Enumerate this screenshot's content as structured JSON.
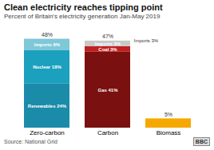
{
  "chart_data": {
    "type": "bar",
    "stacked": true,
    "title": "Clean electricity reaches tipping point",
    "subtitle": "Percent of Britain's electricity generation Jan-May 2019",
    "source": "Source: National Grid",
    "credit": "BBC",
    "categories": [
      "Zero-carbon",
      "Carbon",
      "Biomass"
    ],
    "series": [
      {
        "name": "Renewables 24%",
        "color": "#1a8caa",
        "values": [
          24,
          null,
          null
        ]
      },
      {
        "name": "Nuclear 18%",
        "color": "#1ba0be",
        "values": [
          18,
          null,
          null
        ]
      },
      {
        "name": "Imports 6%",
        "color": "#7ec8d8",
        "values": [
          6,
          null,
          null
        ]
      },
      {
        "name": "Gas 41%",
        "color": "#7a1010",
        "values": [
          null,
          41,
          null
        ]
      },
      {
        "name": "Coal 3%",
        "color": "#c02020",
        "values": [
          null,
          3,
          null
        ]
      },
      {
        "name": "Imports 3%",
        "color": "#c8c8c8",
        "values": [
          null,
          3,
          null
        ]
      },
      {
        "color": "#f5a800",
        "values": [
          null,
          null,
          5
        ]
      }
    ],
    "totals": [
      48,
      47,
      5
    ],
    "total_labels": [
      "48%",
      "47%",
      "5%"
    ],
    "annotations": [
      {
        "text": "Imports 3%",
        "category": "Carbon"
      }
    ],
    "ylim": [
      0,
      56
    ],
    "tick_labels": "x",
    "grid": false
  }
}
